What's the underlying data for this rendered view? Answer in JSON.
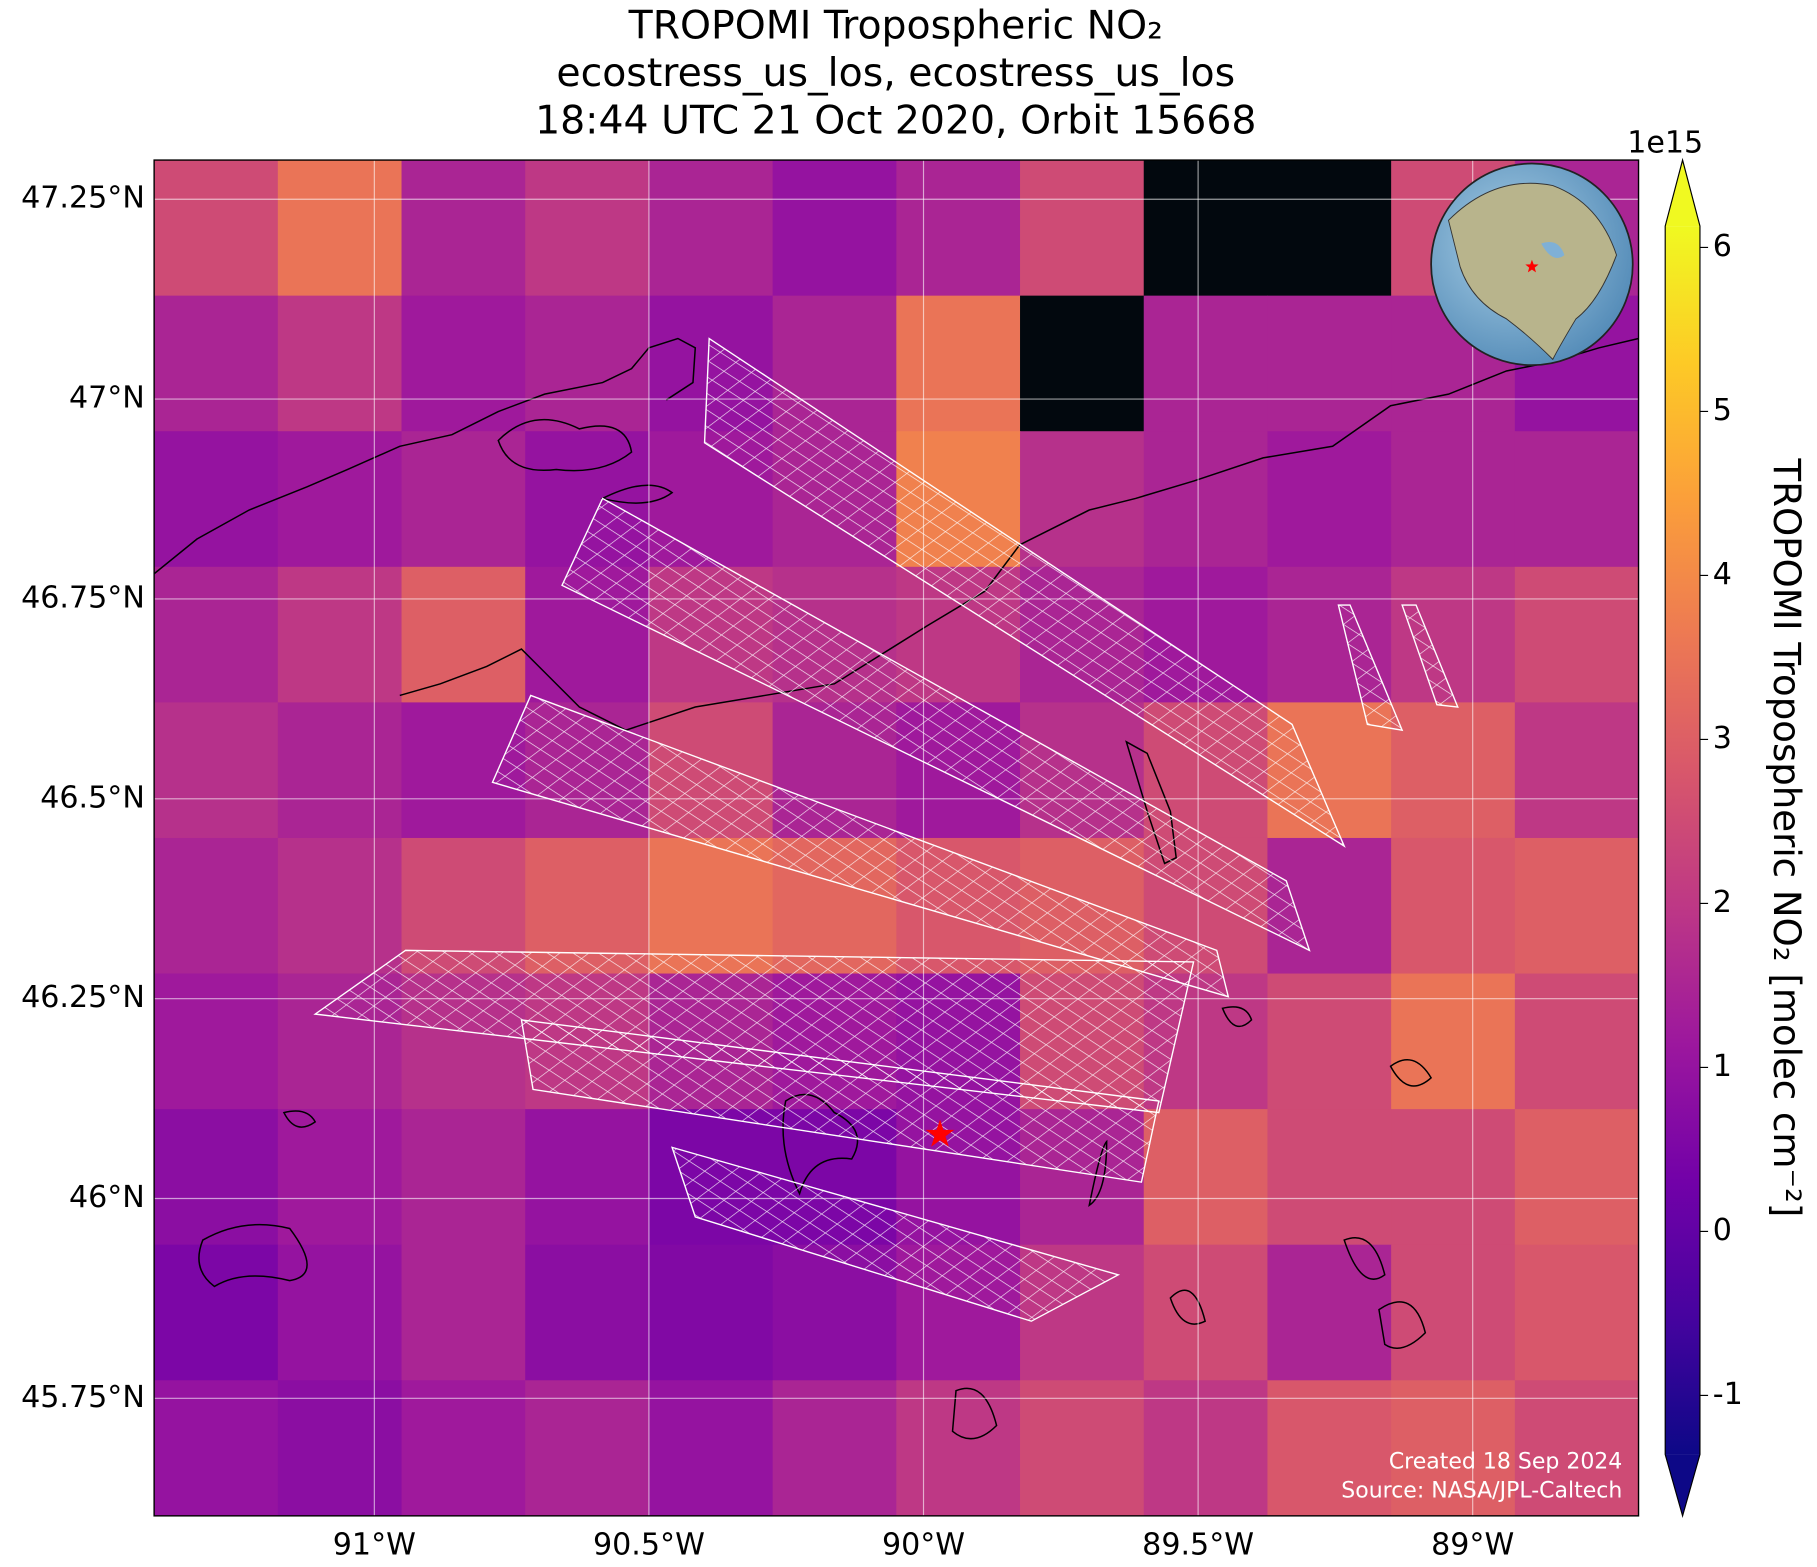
{
  "chart_data": {
    "type": "map",
    "title": [
      "TROPOMI Tropospheric NO₂",
      "ecostress_us_los, ecostress_us_los",
      "18:44 UTC 21 Oct 2020, Orbit 15668"
    ],
    "xlim": [
      -91.401,
      -88.698
    ],
    "ylim": [
      45.603,
      47.299
    ],
    "xticks": [
      {
        "value": -91,
        "label": "91°W"
      },
      {
        "value": -90.5,
        "label": "90.5°W"
      },
      {
        "value": -90,
        "label": "90°W"
      },
      {
        "value": -89.5,
        "label": "89.5°W"
      },
      {
        "value": -89,
        "label": "89°W"
      }
    ],
    "yticks": [
      {
        "value": 47.25,
        "label": "47.25°N"
      },
      {
        "value": 47,
        "label": "47°N"
      },
      {
        "value": 46.75,
        "label": "46.75°N"
      },
      {
        "value": 46.5,
        "label": "46.5°N"
      },
      {
        "value": 46.25,
        "label": "46.25°N"
      },
      {
        "value": 46,
        "label": "46°N"
      },
      {
        "value": 45.75,
        "label": "45.75°N"
      }
    ],
    "grid": true,
    "colormap": [
      "#0d0887",
      "#46039f",
      "#7201a8",
      "#9c179e",
      "#bd3786",
      "#d8576b",
      "#ed7953",
      "#fb9f3a",
      "#fdca26",
      "#f0f921"
    ],
    "nan_color": "#02080e",
    "clim": [
      -1.36,
      6.13
    ],
    "colorbar_ticks": [
      -1,
      0,
      1,
      2,
      3,
      4,
      5,
      6
    ],
    "colorbar_offset": "1e15",
    "colorbar_label": "TROPOMI Tropospheric NO₂ [molec cm⁻²]",
    "values": [
      [
        2.5,
        3.5,
        1.5,
        2.0,
        1.5,
        1.0,
        1.5,
        2.5,
        null,
        null,
        2.5,
        1.5
      ],
      [
        1.5,
        2.0,
        1.2,
        1.5,
        1.0,
        1.5,
        3.5,
        null,
        1.5,
        1.5,
        1.5,
        1.0
      ],
      [
        1.0,
        1.2,
        1.5,
        1.0,
        1.2,
        1.5,
        3.8,
        1.8,
        1.5,
        1.2,
        1.5,
        1.5
      ],
      [
        1.5,
        2.0,
        3.0,
        1.2,
        2.0,
        1.8,
        2.0,
        1.5,
        1.2,
        1.5,
        2.0,
        2.5
      ],
      [
        1.8,
        1.5,
        1.2,
        1.5,
        2.5,
        1.5,
        1.2,
        1.8,
        2.5,
        3.5,
        3.0,
        2.0
      ],
      [
        1.5,
        1.8,
        2.5,
        3.0,
        3.5,
        3.2,
        2.8,
        3.0,
        2.5,
        1.5,
        2.8,
        3.0
      ],
      [
        1.2,
        1.5,
        1.8,
        2.0,
        1.5,
        1.2,
        1.0,
        2.5,
        2.0,
        2.5,
        3.5,
        2.5
      ],
      [
        0.8,
        1.2,
        1.5,
        1.0,
        0.5,
        0.5,
        1.0,
        1.5,
        3.0,
        2.5,
        2.5,
        3.0
      ],
      [
        0.5,
        1.0,
        1.5,
        0.8,
        0.6,
        0.8,
        1.2,
        2.0,
        2.5,
        1.5,
        2.5,
        2.8
      ],
      [
        1.0,
        0.8,
        1.2,
        1.5,
        1.0,
        1.5,
        2.0,
        2.5,
        2.0,
        2.8,
        3.0,
        2.5
      ]
    ],
    "site": {
      "lon": -89.97,
      "lat": 46.08,
      "color": "#ff0000"
    },
    "credits": [
      "Created 18 Sep 2024",
      "Source: NASA/JPL-Caltech"
    ]
  }
}
